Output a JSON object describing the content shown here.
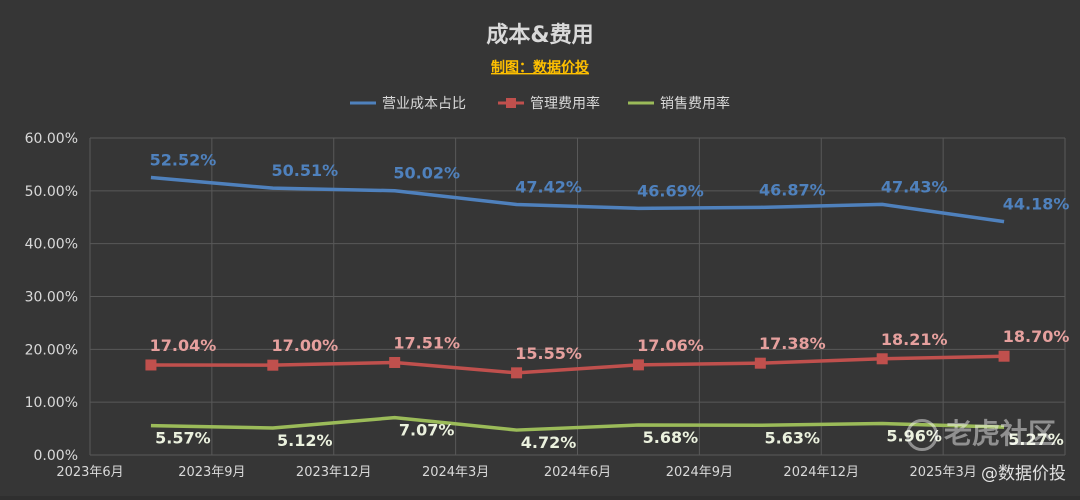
{
  "watermark": {
    "logo_text": "老虎社区",
    "sub_text": "@数据价投"
  },
  "chart_data": {
    "type": "line",
    "title": "成本&费用",
    "subtitle": "制图：数据价投",
    "categories": [
      "2023年6月",
      "2023年9月",
      "2023年12月",
      "2024年3月",
      "2024年6月",
      "2024年9月",
      "2024年12月",
      "2025年3月"
    ],
    "ylim": [
      0,
      60
    ],
    "yticks": [
      "0.00%",
      "10.00%",
      "20.00%",
      "30.00%",
      "40.00%",
      "50.00%",
      "60.00%"
    ],
    "grid": true,
    "legend_position": "top",
    "series": [
      {
        "name": "营业成本占比",
        "color": "#4f81bd",
        "marker": "none",
        "values": [
          52.52,
          50.51,
          50.02,
          47.42,
          46.69,
          46.87,
          47.43,
          44.18
        ],
        "labels": [
          "52.52%",
          "50.51%",
          "50.02%",
          "47.42%",
          "46.69%",
          "46.87%",
          "47.43%",
          "44.18%"
        ]
      },
      {
        "name": "管理费用率",
        "color": "#c0504d",
        "marker": "square",
        "values": [
          17.04,
          17.0,
          17.51,
          15.55,
          17.06,
          17.38,
          18.21,
          18.7
        ],
        "labels": [
          "17.04%",
          "17.00%",
          "17.51%",
          "15.55%",
          "17.06%",
          "17.38%",
          "18.21%",
          "18.70%"
        ]
      },
      {
        "name": "销售费用率",
        "color": "#9bbb59",
        "marker": "none",
        "values": [
          5.57,
          5.12,
          7.07,
          4.72,
          5.68,
          5.63,
          5.96,
          5.27
        ],
        "labels": [
          "5.57%",
          "5.12%",
          "7.07%",
          "4.72%",
          "5.68%",
          "5.63%",
          "5.96%",
          "5.27%"
        ]
      }
    ]
  }
}
